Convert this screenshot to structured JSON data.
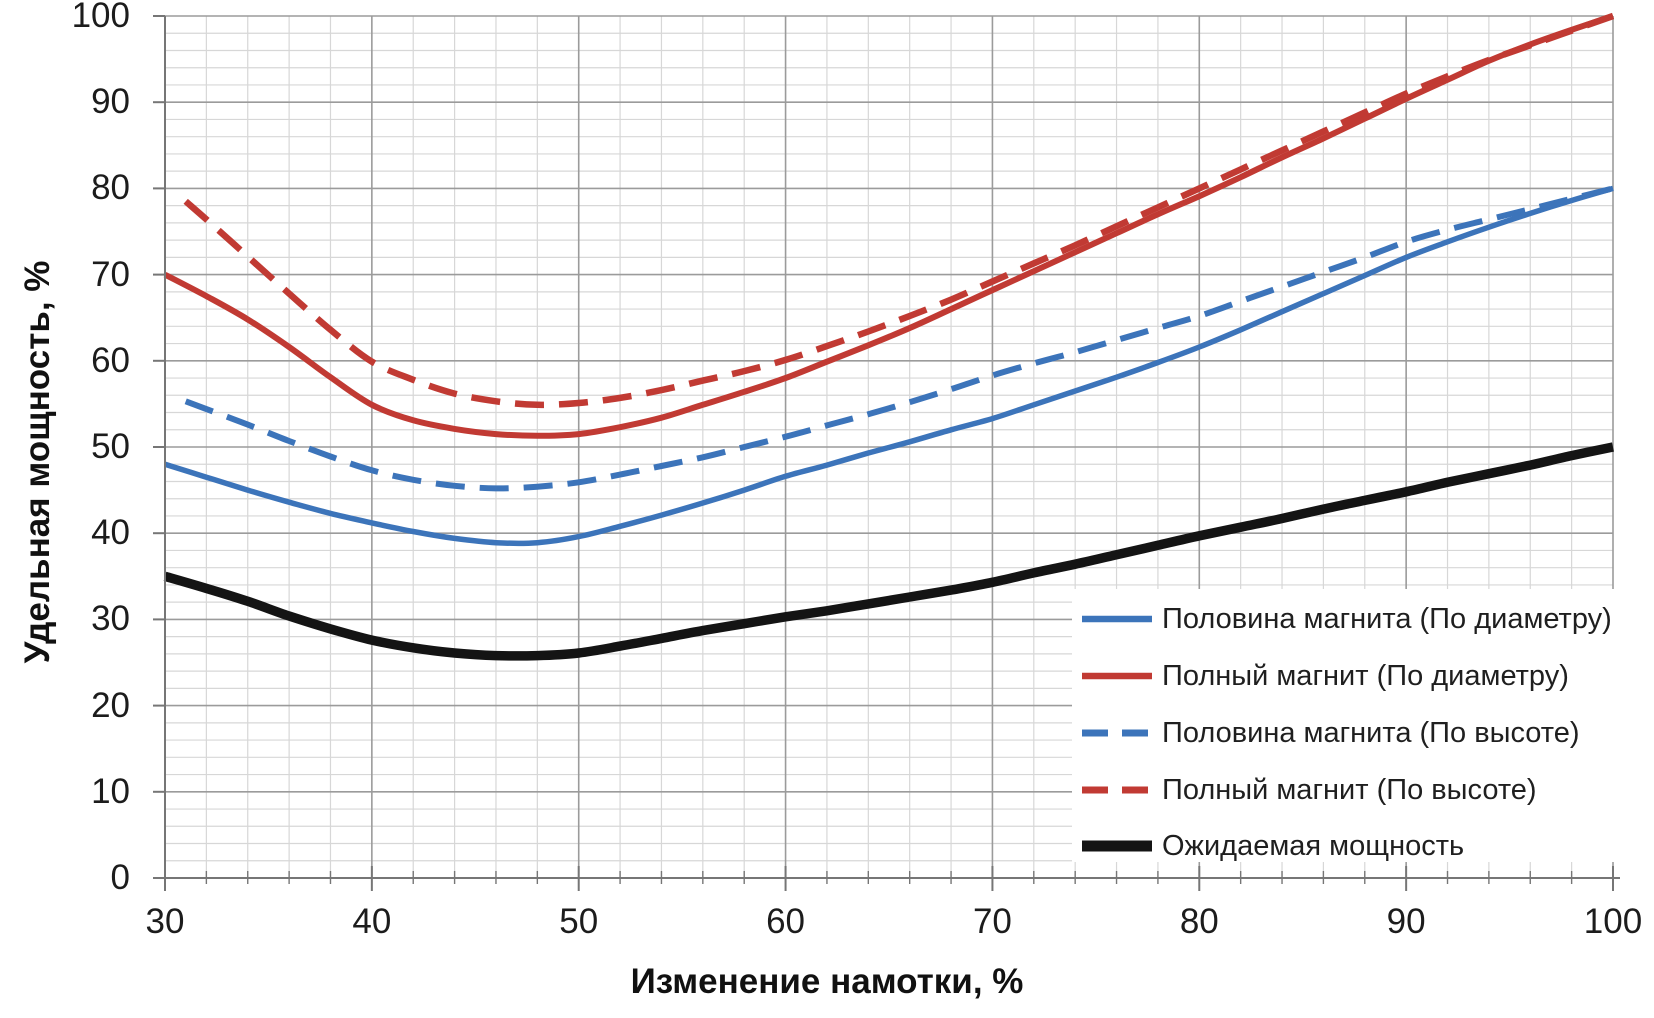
{
  "figure": {
    "background": "#FFFFFF",
    "colors": {
      "blue_series": "#3C74BA",
      "red_series": "#C13A33",
      "black_series": "#141414",
      "minor_grid": "#D7D7D7",
      "major_grid": "#9B9B9B",
      "axis_line": "#767676",
      "tick_text": "#1C1C1C",
      "legend_background": "#FFFFFF"
    }
  },
  "chart_data": {
    "type": "line",
    "title": "",
    "xlabel": "Изменение намотки, %",
    "ylabel": "Удельная мощность, %",
    "xlim": [
      30,
      100
    ],
    "ylim": [
      0,
      100
    ],
    "x_major_step": 10,
    "y_major_step": 10,
    "x_minor_step": 2,
    "y_minor_step": 2,
    "grid": "major and minor gridlines on",
    "legend_position": "inside lower right, white box",
    "x_tick_labels": [
      "30",
      "40",
      "50",
      "60",
      "70",
      "80",
      "90",
      "100"
    ],
    "y_tick_labels": [
      "0",
      "10",
      "20",
      "30",
      "40",
      "50",
      "60",
      "70",
      "80",
      "90",
      "100"
    ],
    "series": [
      {
        "name": "Половина магнита (По диаметру)",
        "color": "#3C74BA",
        "style": "solid",
        "stroke_width": 5.5,
        "points": [
          [
            30,
            48
          ],
          [
            32,
            46.5
          ],
          [
            34,
            45
          ],
          [
            36,
            43.6
          ],
          [
            38,
            42.3
          ],
          [
            40,
            41.2
          ],
          [
            42,
            40.2
          ],
          [
            44,
            39.4
          ],
          [
            46,
            38.9
          ],
          [
            48,
            38.9
          ],
          [
            50,
            39.6
          ],
          [
            52,
            40.8
          ],
          [
            54,
            42.1
          ],
          [
            56,
            43.5
          ],
          [
            58,
            45
          ],
          [
            60,
            46.6
          ],
          [
            62,
            47.9
          ],
          [
            64,
            49.3
          ],
          [
            66,
            50.6
          ],
          [
            68,
            52
          ],
          [
            70,
            53.3
          ],
          [
            72,
            54.9
          ],
          [
            74,
            56.5
          ],
          [
            76,
            58.1
          ],
          [
            78,
            59.8
          ],
          [
            80,
            61.6
          ],
          [
            82,
            63.6
          ],
          [
            84,
            65.7
          ],
          [
            86,
            67.8
          ],
          [
            88,
            69.9
          ],
          [
            90,
            72
          ],
          [
            92,
            73.8
          ],
          [
            94,
            75.5
          ],
          [
            96,
            77.1
          ],
          [
            98,
            78.6
          ],
          [
            100,
            80
          ]
        ]
      },
      {
        "name": "Полный магнит (По диаметру)",
        "color": "#C13A33",
        "style": "solid",
        "stroke_width": 6,
        "points": [
          [
            30,
            70
          ],
          [
            32,
            67.5
          ],
          [
            34,
            64.8
          ],
          [
            36,
            61.6
          ],
          [
            38,
            58.1
          ],
          [
            40,
            54.9
          ],
          [
            42,
            53.1
          ],
          [
            44,
            52.1
          ],
          [
            46,
            51.5
          ],
          [
            48,
            51.3
          ],
          [
            50,
            51.5
          ],
          [
            52,
            52.3
          ],
          [
            54,
            53.4
          ],
          [
            56,
            54.9
          ],
          [
            58,
            56.4
          ],
          [
            60,
            58
          ],
          [
            62,
            59.9
          ],
          [
            64,
            61.8
          ],
          [
            66,
            63.8
          ],
          [
            68,
            66
          ],
          [
            70,
            68.2
          ],
          [
            72,
            70.4
          ],
          [
            74,
            72.6
          ],
          [
            76,
            74.8
          ],
          [
            78,
            77
          ],
          [
            80,
            79.1
          ],
          [
            82,
            81.3
          ],
          [
            84,
            83.6
          ],
          [
            86,
            85.8
          ],
          [
            88,
            88.1
          ],
          [
            90,
            90.4
          ],
          [
            92,
            92.6
          ],
          [
            94,
            94.8
          ],
          [
            96,
            96.7
          ],
          [
            98,
            98.4
          ],
          [
            100,
            100
          ]
        ]
      },
      {
        "name": "Половина магнита (По высоте)",
        "color": "#3C74BA",
        "style": "dashed",
        "stroke_width": 6,
        "points": [
          [
            31,
            55.3
          ],
          [
            32,
            54.4
          ],
          [
            34,
            52.6
          ],
          [
            36,
            50.7
          ],
          [
            38,
            48.9
          ],
          [
            40,
            47.3
          ],
          [
            42,
            46.2
          ],
          [
            44,
            45.5
          ],
          [
            46,
            45.2
          ],
          [
            48,
            45.4
          ],
          [
            50,
            45.9
          ],
          [
            52,
            46.8
          ],
          [
            54,
            47.8
          ],
          [
            56,
            48.8
          ],
          [
            58,
            50
          ],
          [
            60,
            51.2
          ],
          [
            62,
            52.5
          ],
          [
            64,
            53.8
          ],
          [
            66,
            55.2
          ],
          [
            68,
            56.7
          ],
          [
            70,
            58.3
          ],
          [
            72,
            59.7
          ],
          [
            74,
            61
          ],
          [
            76,
            62.4
          ],
          [
            78,
            63.8
          ],
          [
            80,
            65.2
          ],
          [
            82,
            66.9
          ],
          [
            84,
            68.6
          ],
          [
            86,
            70.3
          ],
          [
            88,
            72
          ],
          [
            90,
            73.8
          ],
          [
            92,
            75.2
          ],
          [
            94,
            76.4
          ],
          [
            96,
            77.6
          ],
          [
            98,
            78.8
          ],
          [
            100,
            80
          ]
        ]
      },
      {
        "name": "Полный магнит (По высоте)",
        "color": "#C13A33",
        "style": "dashed",
        "stroke_width": 6.5,
        "points": [
          [
            31,
            78.5
          ],
          [
            32,
            76.4
          ],
          [
            34,
            72.1
          ],
          [
            36,
            67.8
          ],
          [
            38,
            63.6
          ],
          [
            40,
            59.9
          ],
          [
            42,
            57.8
          ],
          [
            44,
            56.2
          ],
          [
            46,
            55.3
          ],
          [
            48,
            54.9
          ],
          [
            50,
            55.1
          ],
          [
            52,
            55.7
          ],
          [
            54,
            56.6
          ],
          [
            56,
            57.7
          ],
          [
            58,
            58.8
          ],
          [
            60,
            60.1
          ],
          [
            62,
            61.7
          ],
          [
            64,
            63.4
          ],
          [
            66,
            65.2
          ],
          [
            68,
            67.1
          ],
          [
            70,
            69.2
          ],
          [
            72,
            71.3
          ],
          [
            74,
            73.4
          ],
          [
            76,
            75.6
          ],
          [
            78,
            77.8
          ],
          [
            80,
            80
          ],
          [
            82,
            82.2
          ],
          [
            84,
            84.4
          ],
          [
            86,
            86.6
          ],
          [
            88,
            88.8
          ],
          [
            90,
            91
          ],
          [
            92,
            93
          ],
          [
            94,
            94.9
          ],
          [
            96,
            96.6
          ],
          [
            98,
            98.3
          ],
          [
            100,
            100
          ]
        ]
      },
      {
        "name": "Ожидаемая мощность",
        "color": "#141414",
        "style": "solid",
        "stroke_width": 9.5,
        "points": [
          [
            30,
            35
          ],
          [
            32,
            33.6
          ],
          [
            34,
            32.1
          ],
          [
            36,
            30.4
          ],
          [
            38,
            28.9
          ],
          [
            40,
            27.6
          ],
          [
            42,
            26.7
          ],
          [
            44,
            26.1
          ],
          [
            46,
            25.8
          ],
          [
            48,
            25.8
          ],
          [
            50,
            26.1
          ],
          [
            52,
            26.9
          ],
          [
            54,
            27.8
          ],
          [
            56,
            28.7
          ],
          [
            58,
            29.5
          ],
          [
            60,
            30.3
          ],
          [
            62,
            31
          ],
          [
            64,
            31.8
          ],
          [
            66,
            32.6
          ],
          [
            68,
            33.4
          ],
          [
            70,
            34.3
          ],
          [
            72,
            35.4
          ],
          [
            74,
            36.4
          ],
          [
            76,
            37.5
          ],
          [
            78,
            38.6
          ],
          [
            80,
            39.7
          ],
          [
            82,
            40.7
          ],
          [
            84,
            41.7
          ],
          [
            86,
            42.8
          ],
          [
            88,
            43.8
          ],
          [
            90,
            44.8
          ],
          [
            92,
            45.9
          ],
          [
            94,
            46.9
          ],
          [
            96,
            47.9
          ],
          [
            98,
            49
          ],
          [
            100,
            50
          ]
        ]
      }
    ]
  }
}
